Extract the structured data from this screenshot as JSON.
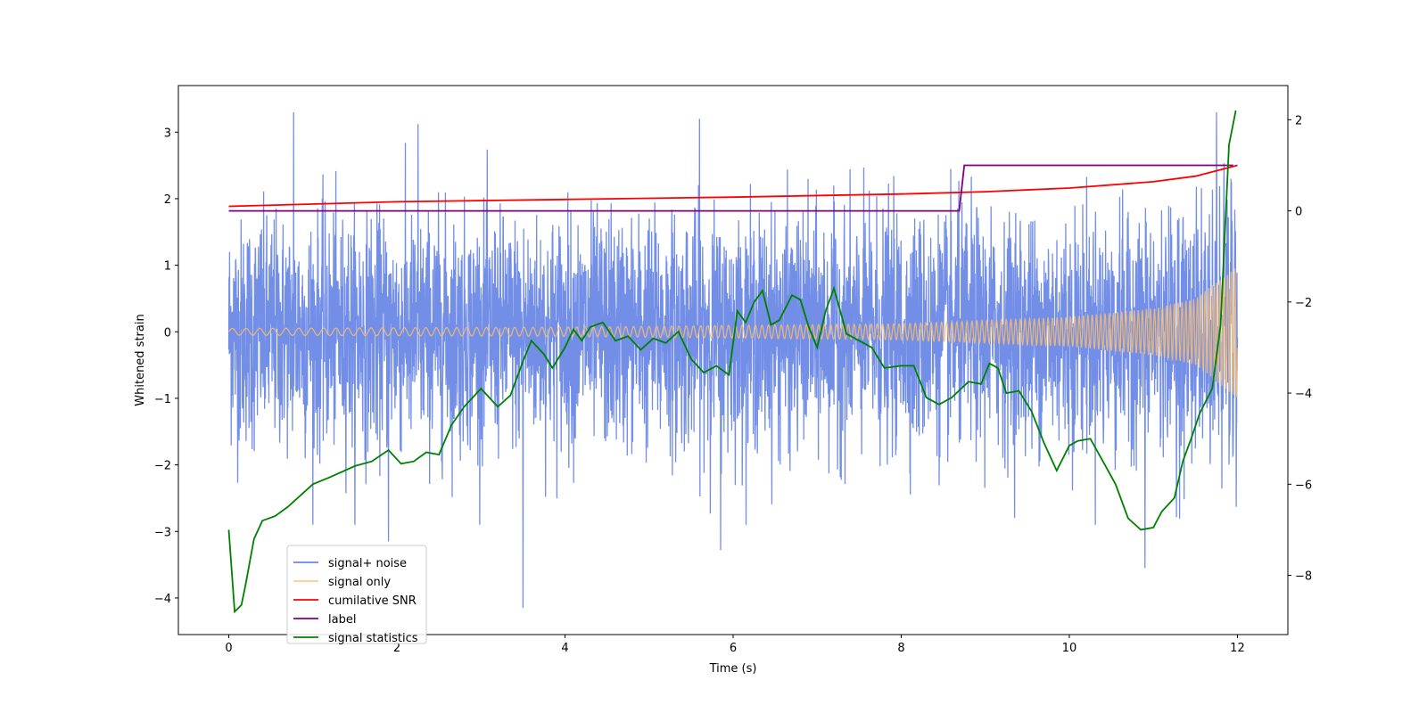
{
  "chart_data": {
    "type": "line",
    "title": "",
    "xlabel": "Time (s)",
    "ylabel": "Whitened strain",
    "xlim": [
      -0.6,
      12.6
    ],
    "ylim": [
      -4.55,
      3.7
    ],
    "y2lim": [
      -9.3,
      2.75
    ],
    "x_ticks": [
      0,
      2,
      4,
      6,
      8,
      10,
      12
    ],
    "y_ticks": [
      -4,
      -3,
      -2,
      -1,
      0,
      1,
      2,
      3
    ],
    "y2_ticks": [
      -8,
      -6,
      -4,
      -2,
      0,
      2
    ],
    "grid": false,
    "legend_position": "lower-left",
    "colors": {
      "noise": "#6a88e6",
      "signal": "#ffbf66",
      "snr": "#ff0000",
      "label": "#800080",
      "stats": "#008000"
    },
    "series": [
      {
        "name": "signal+ noise",
        "axis": "left",
        "description": "dense noisy trace, roughly within ±2.5 with spikes to ±3.3",
        "peak_samples": [
          {
            "x": 0.77,
            "y": 3.3
          },
          {
            "x": 2.25,
            "y": 3.12
          },
          {
            "x": 3.5,
            "y": -4.15
          },
          {
            "x": 5.85,
            "y": -3.28
          },
          {
            "x": 5.6,
            "y": 3.2
          },
          {
            "x": 10.9,
            "y": -3.55
          },
          {
            "x": 11.75,
            "y": 3.3
          },
          {
            "x": 1.9,
            "y": -3.15
          }
        ]
      },
      {
        "name": "signal only",
        "axis": "left",
        "description": "chirp whose amplitude grows from about 0.05 to about 1.0 at t=12",
        "amplitude_points": [
          {
            "x": 0,
            "y": 0.05
          },
          {
            "x": 4,
            "y": 0.07
          },
          {
            "x": 8,
            "y": 0.12
          },
          {
            "x": 10,
            "y": 0.22
          },
          {
            "x": 11,
            "y": 0.35
          },
          {
            "x": 11.5,
            "y": 0.5
          },
          {
            "x": 12,
            "y": 1.0
          }
        ]
      },
      {
        "name": "cumilative SNR",
        "axis": "right",
        "points": [
          {
            "x": 0,
            "y": 0.1
          },
          {
            "x": 2,
            "y": 0.2
          },
          {
            "x": 4,
            "y": 0.25
          },
          {
            "x": 6,
            "y": 0.3
          },
          {
            "x": 8,
            "y": 0.37
          },
          {
            "x": 9,
            "y": 0.42
          },
          {
            "x": 10,
            "y": 0.5
          },
          {
            "x": 11,
            "y": 0.64
          },
          {
            "x": 11.5,
            "y": 0.76
          },
          {
            "x": 12,
            "y": 1.0
          }
        ]
      },
      {
        "name": "label",
        "axis": "right",
        "points": [
          {
            "x": 0,
            "y": 0
          },
          {
            "x": 8.69,
            "y": 0
          },
          {
            "x": 8.75,
            "y": 1
          },
          {
            "x": 11.95,
            "y": 1
          }
        ]
      },
      {
        "name": "signal statistics",
        "axis": "right",
        "points": [
          {
            "x": 0.0,
            "y": -7.0
          },
          {
            "x": 0.07,
            "y": -8.8
          },
          {
            "x": 0.15,
            "y": -8.65
          },
          {
            "x": 0.2,
            "y": -8.2
          },
          {
            "x": 0.25,
            "y": -7.7
          },
          {
            "x": 0.3,
            "y": -7.2
          },
          {
            "x": 0.4,
            "y": -6.8
          },
          {
            "x": 0.55,
            "y": -6.7
          },
          {
            "x": 0.7,
            "y": -6.5
          },
          {
            "x": 0.85,
            "y": -6.25
          },
          {
            "x": 1.0,
            "y": -6.0
          },
          {
            "x": 1.2,
            "y": -5.85
          },
          {
            "x": 1.5,
            "y": -5.6
          },
          {
            "x": 1.7,
            "y": -5.5
          },
          {
            "x": 1.9,
            "y": -5.25
          },
          {
            "x": 2.05,
            "y": -5.55
          },
          {
            "x": 2.2,
            "y": -5.5
          },
          {
            "x": 2.35,
            "y": -5.3
          },
          {
            "x": 2.5,
            "y": -5.35
          },
          {
            "x": 2.65,
            "y": -4.7
          },
          {
            "x": 2.8,
            "y": -4.3
          },
          {
            "x": 3.0,
            "y": -3.9
          },
          {
            "x": 3.2,
            "y": -4.3
          },
          {
            "x": 3.35,
            "y": -4.05
          },
          {
            "x": 3.5,
            "y": -3.3
          },
          {
            "x": 3.6,
            "y": -2.85
          },
          {
            "x": 3.75,
            "y": -3.15
          },
          {
            "x": 3.85,
            "y": -3.45
          },
          {
            "x": 4.0,
            "y": -3.0
          },
          {
            "x": 4.1,
            "y": -2.6
          },
          {
            "x": 4.2,
            "y": -2.85
          },
          {
            "x": 4.3,
            "y": -2.55
          },
          {
            "x": 4.45,
            "y": -2.45
          },
          {
            "x": 4.6,
            "y": -2.85
          },
          {
            "x": 4.75,
            "y": -2.75
          },
          {
            "x": 4.9,
            "y": -3.05
          },
          {
            "x": 5.05,
            "y": -2.8
          },
          {
            "x": 5.2,
            "y": -2.9
          },
          {
            "x": 5.35,
            "y": -2.65
          },
          {
            "x": 5.5,
            "y": -3.25
          },
          {
            "x": 5.65,
            "y": -3.55
          },
          {
            "x": 5.8,
            "y": -3.4
          },
          {
            "x": 5.95,
            "y": -3.6
          },
          {
            "x": 6.05,
            "y": -2.2
          },
          {
            "x": 6.15,
            "y": -2.45
          },
          {
            "x": 6.25,
            "y": -2.0
          },
          {
            "x": 6.35,
            "y": -1.75
          },
          {
            "x": 6.45,
            "y": -2.5
          },
          {
            "x": 6.55,
            "y": -2.4
          },
          {
            "x": 6.7,
            "y": -1.85
          },
          {
            "x": 6.8,
            "y": -1.95
          },
          {
            "x": 6.9,
            "y": -2.55
          },
          {
            "x": 7.0,
            "y": -3.0
          },
          {
            "x": 7.1,
            "y": -2.2
          },
          {
            "x": 7.2,
            "y": -1.7
          },
          {
            "x": 7.35,
            "y": -2.7
          },
          {
            "x": 7.5,
            "y": -2.85
          },
          {
            "x": 7.65,
            "y": -3.0
          },
          {
            "x": 7.8,
            "y": -3.45
          },
          {
            "x": 8.0,
            "y": -3.4
          },
          {
            "x": 8.15,
            "y": -3.4
          },
          {
            "x": 8.3,
            "y": -4.1
          },
          {
            "x": 8.45,
            "y": -4.25
          },
          {
            "x": 8.6,
            "y": -4.1
          },
          {
            "x": 8.8,
            "y": -3.75
          },
          {
            "x": 8.95,
            "y": -3.8
          },
          {
            "x": 9.05,
            "y": -3.35
          },
          {
            "x": 9.15,
            "y": -3.45
          },
          {
            "x": 9.25,
            "y": -4.0
          },
          {
            "x": 9.4,
            "y": -3.95
          },
          {
            "x": 9.55,
            "y": -4.4
          },
          {
            "x": 9.7,
            "y": -5.1
          },
          {
            "x": 9.85,
            "y": -5.7
          },
          {
            "x": 10.0,
            "y": -5.15
          },
          {
            "x": 10.1,
            "y": -5.05
          },
          {
            "x": 10.25,
            "y": -5.0
          },
          {
            "x": 10.4,
            "y": -5.5
          },
          {
            "x": 10.55,
            "y": -6.0
          },
          {
            "x": 10.7,
            "y": -6.75
          },
          {
            "x": 10.85,
            "y": -7.0
          },
          {
            "x": 11.0,
            "y": -6.95
          },
          {
            "x": 11.1,
            "y": -6.6
          },
          {
            "x": 11.25,
            "y": -6.3
          },
          {
            "x": 11.35,
            "y": -5.5
          },
          {
            "x": 11.45,
            "y": -5.0
          },
          {
            "x": 11.55,
            "y": -4.45
          },
          {
            "x": 11.7,
            "y": -3.9
          },
          {
            "x": 11.8,
            "y": -2.5
          },
          {
            "x": 11.9,
            "y": 1.45
          },
          {
            "x": 11.98,
            "y": 2.2
          }
        ]
      }
    ]
  }
}
